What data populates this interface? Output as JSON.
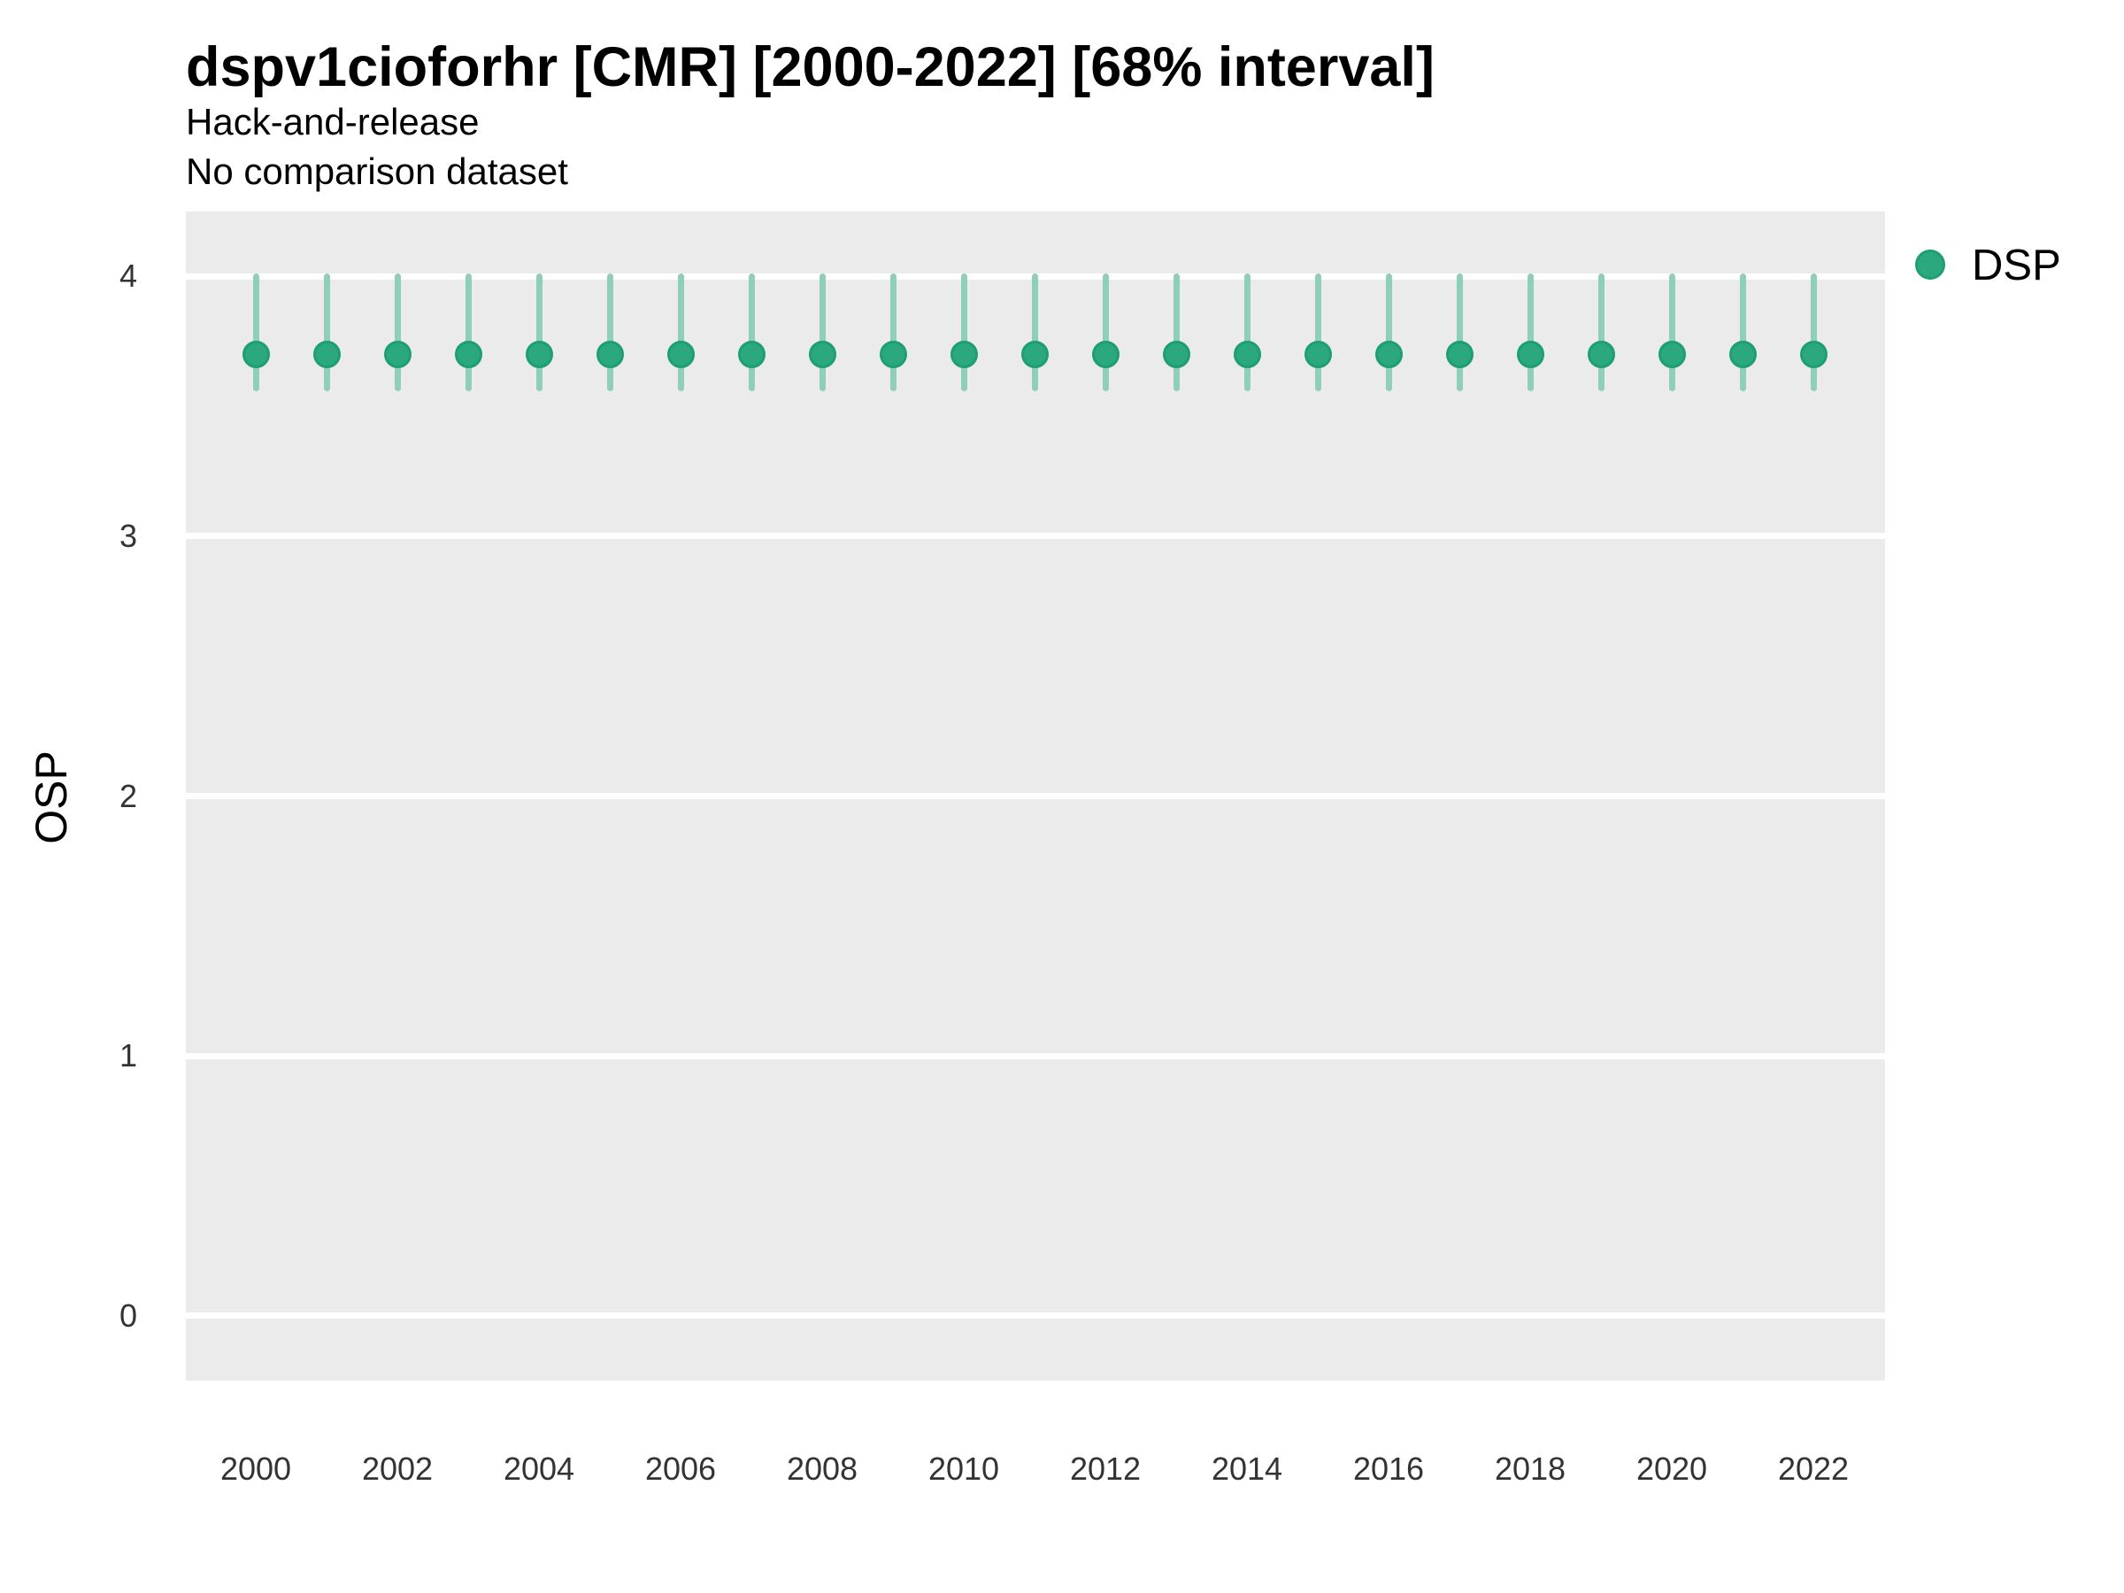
{
  "chart_data": {
    "type": "scatter",
    "subtype": "pointrange",
    "title": "dspv1cioforhr [CMR] [2000-2022] [68% interval]",
    "subtitle_lines": [
      "Hack-and-release",
      "No comparison dataset"
    ],
    "xlabel": "",
    "ylabel": "OSP",
    "interval_label": "68% interval",
    "xlim": [
      1999.01,
      2023.01
    ],
    "ylim": [
      -0.25,
      4.25
    ],
    "y_ticks": [
      0,
      1,
      2,
      3,
      4
    ],
    "x_tick_labels": [
      "2000",
      "2002",
      "2004",
      "2006",
      "2008",
      "2010",
      "2012",
      "2014",
      "2016",
      "2018",
      "2020",
      "2022"
    ],
    "grid": "horizontal-major-only",
    "panel_bg": "#EBEBEB",
    "gridline_color": "#FFFFFF",
    "legend_position": "right-top",
    "legend": {
      "entries": [
        {
          "label": "DSP",
          "color": "#2BA87D"
        }
      ]
    },
    "series": [
      {
        "name": "DSP",
        "point_fill": "#2BA87D",
        "point_stroke": "#1E9E73",
        "interval_color": "#90CFB7",
        "x": [
          2000,
          2001,
          2002,
          2003,
          2004,
          2005,
          2006,
          2007,
          2008,
          2009,
          2010,
          2011,
          2012,
          2013,
          2014,
          2015,
          2016,
          2017,
          2018,
          2019,
          2020,
          2021,
          2022
        ],
        "y": [
          3.7,
          3.7,
          3.7,
          3.7,
          3.7,
          3.7,
          3.7,
          3.7,
          3.7,
          3.7,
          3.7,
          3.7,
          3.7,
          3.7,
          3.7,
          3.7,
          3.7,
          3.7,
          3.7,
          3.7,
          3.7,
          3.7,
          3.7
        ],
        "y_lo": [
          3.57,
          3.57,
          3.57,
          3.57,
          3.57,
          3.57,
          3.57,
          3.57,
          3.57,
          3.57,
          3.57,
          3.57,
          3.57,
          3.57,
          3.57,
          3.57,
          3.57,
          3.57,
          3.57,
          3.57,
          3.57,
          3.57,
          3.57
        ],
        "y_hi": [
          4.0,
          4.0,
          4.0,
          4.0,
          4.0,
          4.0,
          4.0,
          4.0,
          4.0,
          4.0,
          4.0,
          4.0,
          4.0,
          4.0,
          4.0,
          4.0,
          4.0,
          4.0,
          4.0,
          4.0,
          4.0,
          4.0,
          4.0
        ]
      }
    ]
  }
}
